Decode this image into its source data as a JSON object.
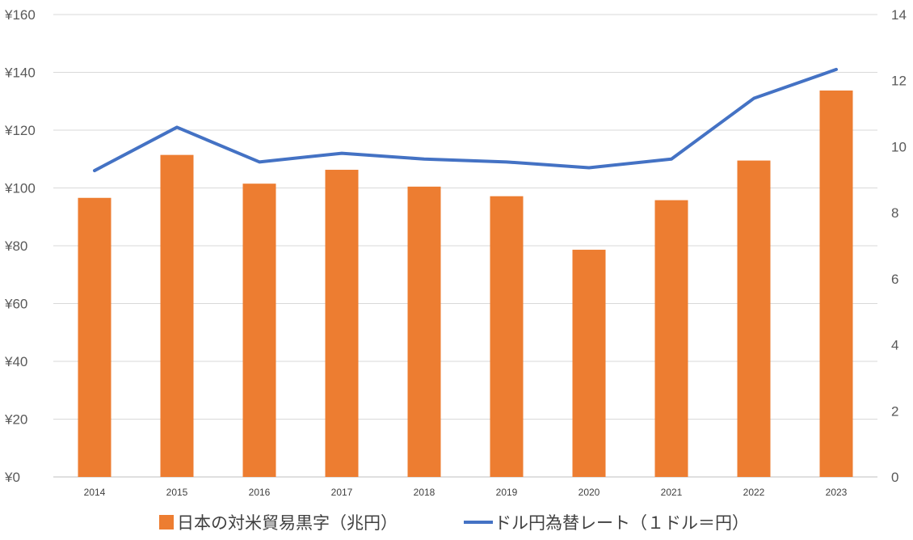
{
  "chart_data": {
    "type": "bar+line",
    "categories": [
      "2014",
      "2015",
      "2016",
      "2017",
      "2018",
      "2019",
      "2020",
      "2021",
      "2022",
      "2023"
    ],
    "left_axis": {
      "ylim": [
        0,
        160
      ],
      "ticks": [
        0,
        20,
        40,
        60,
        80,
        100,
        120,
        140,
        160
      ],
      "tick_labels": [
        "¥0",
        "¥20",
        "¥40",
        "¥60",
        "¥80",
        "¥100",
        "¥120",
        "¥140",
        "¥160"
      ]
    },
    "right_axis": {
      "ylim": [
        0,
        14
      ],
      "ticks": [
        0,
        2,
        4,
        6,
        8,
        10,
        12,
        14
      ],
      "tick_labels": [
        "0",
        "2",
        "4",
        "6",
        "8",
        "10",
        "12",
        "14"
      ]
    },
    "series": [
      {
        "name": "日本の対米貿易黒字（兆円）",
        "kind": "bar",
        "axis": "right",
        "color": "#ED7D31",
        "values": [
          8.45,
          9.75,
          8.88,
          9.3,
          8.79,
          8.5,
          6.88,
          8.38,
          9.58,
          11.7
        ]
      },
      {
        "name": "ドル円為替レート（１ドル＝円）",
        "kind": "line",
        "axis": "left",
        "color": "#4472C4",
        "values": [
          106,
          121,
          109,
          112,
          110,
          109,
          107,
          110,
          131,
          141
        ]
      }
    ],
    "grid": true,
    "legend_position": "bottom"
  }
}
